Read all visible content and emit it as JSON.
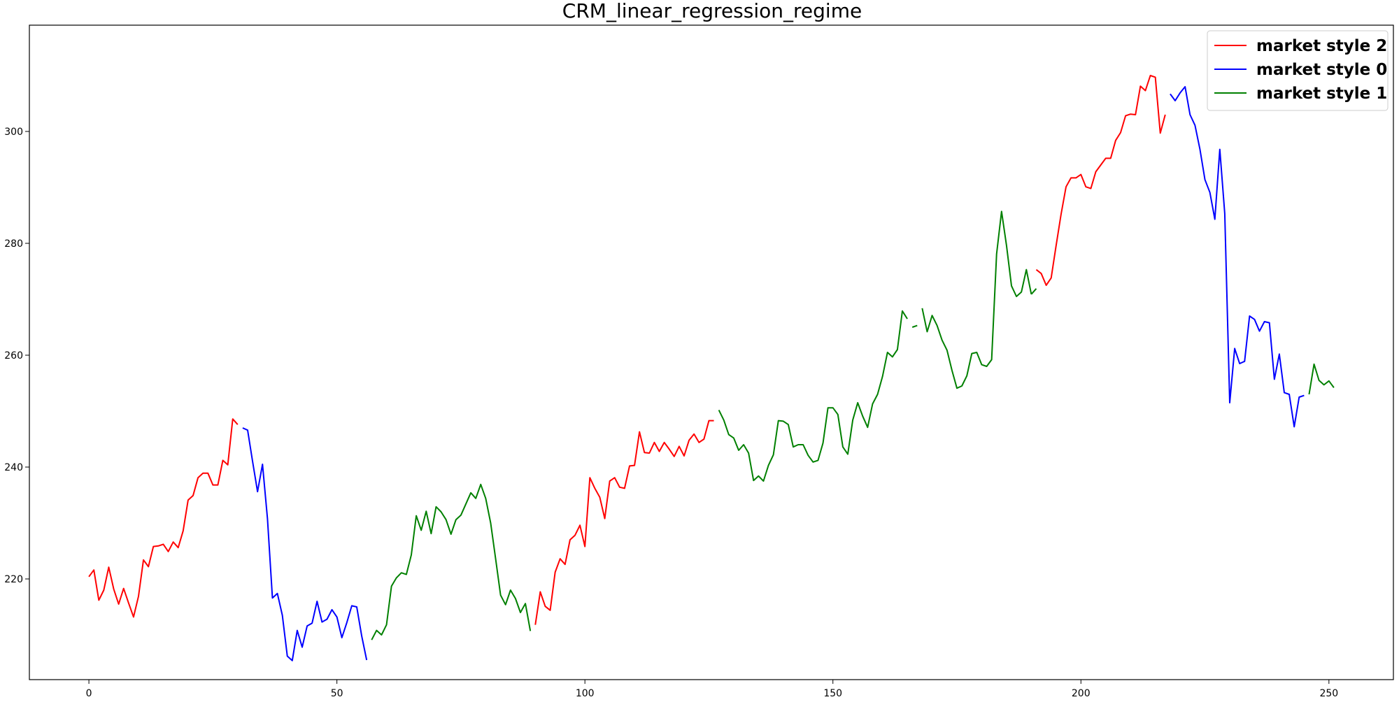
{
  "chart_data": {
    "type": "line",
    "title": "CRM_linear_regression_regime",
    "xlabel": "",
    "ylabel": "",
    "xlim": [
      -12,
      263
    ],
    "ylim": [
      202,
      319
    ],
    "x_ticks": [
      0,
      50,
      100,
      150,
      200,
      250
    ],
    "y_ticks": [
      220,
      240,
      260,
      280,
      300
    ],
    "grid": false,
    "legend_position": "top-right",
    "legend": [
      {
        "label": "market style 2",
        "color": "#ff0000"
      },
      {
        "label": "market style 0",
        "color": "#0000ff"
      },
      {
        "label": "market style 1",
        "color": "#008000"
      }
    ],
    "series": [
      {
        "name": "market style 2",
        "color": "#ff0000",
        "segments": [
          {
            "x": [
              0,
              1,
              2,
              3,
              4,
              5,
              6,
              7,
              8,
              9,
              10,
              11,
              12,
              13,
              14,
              15,
              16,
              17,
              18,
              19,
              20,
              21,
              22,
              23,
              24,
              25,
              26,
              27,
              28,
              29,
              30
            ],
            "y": [
              220.4,
              221.6,
              216.2,
              218.0,
              222.1,
              218.2,
              215.5,
              218.3,
              215.7,
              213.2,
              216.9,
              223.4,
              222.2,
              225.8,
              225.9,
              226.2,
              224.9,
              226.6,
              225.6,
              228.6,
              234.1,
              234.9,
              238.1,
              238.9,
              238.9,
              236.8,
              236.8,
              241.2,
              240.4,
              248.6,
              247.6
            ]
          },
          {
            "x": [
              90,
              91,
              92,
              93,
              94,
              95,
              96,
              97,
              98,
              99,
              100,
              101,
              102,
              103,
              104,
              105,
              106,
              107,
              108,
              109,
              110,
              111,
              112,
              113,
              114,
              115,
              116,
              117,
              118,
              119,
              120,
              121,
              122,
              123,
              124,
              125,
              126
            ],
            "y": [
              211.8,
              217.7,
              215.1,
              214.4,
              221.2,
              223.6,
              222.6,
              227.0,
              227.8,
              229.6,
              225.8,
              238.1,
              236.2,
              234.6,
              230.8,
              237.5,
              238.1,
              236.4,
              236.2,
              240.2,
              240.3,
              246.3,
              242.6,
              242.5,
              244.4,
              242.8,
              244.4,
              243.2,
              241.9,
              243.7,
              242.0,
              244.8,
              245.9,
              244.4,
              245.0,
              248.3,
              248.3
            ]
          },
          {
            "x": [
              191,
              192,
              193,
              194,
              195,
              196,
              197,
              198,
              199,
              200,
              201,
              202,
              203,
              204,
              205,
              206,
              207,
              208,
              209,
              210,
              211,
              212,
              213,
              214,
              215,
              216,
              217
            ],
            "y": [
              275.3,
              274.6,
              272.5,
              273.8,
              279.6,
              285.2,
              290.1,
              291.7,
              291.7,
              292.3,
              290.1,
              289.8,
              292.8,
              294.0,
              295.2,
              295.2,
              298.4,
              299.8,
              302.8,
              303.1,
              303.0,
              308.1,
              307.3,
              310.0,
              309.7,
              299.7,
              303.0
            ]
          }
        ]
      },
      {
        "name": "market style 0",
        "color": "#0000ff",
        "segments": [
          {
            "x": [
              31,
              32,
              33,
              34,
              35,
              36,
              37,
              38,
              39,
              40,
              41,
              42,
              43,
              44,
              45,
              46,
              47,
              48,
              49,
              50,
              51,
              52,
              53,
              54,
              55,
              56
            ],
            "y": [
              247.0,
              246.6,
              241.0,
              235.6,
              240.5,
              230.8,
              216.6,
              217.4,
              213.5,
              206.2,
              205.4,
              210.8,
              207.8,
              211.6,
              212.1,
              216.0,
              212.3,
              212.8,
              214.5,
              213.2,
              209.5,
              212.2,
              215.2,
              215.0,
              209.8,
              205.5
            ]
          },
          {
            "x": [
              218,
              219,
              220,
              221,
              222,
              223,
              224,
              225,
              226,
              227,
              228,
              229,
              230,
              231,
              232,
              233,
              234,
              235,
              236,
              237,
              238,
              239,
              240,
              241,
              242,
              243,
              244,
              245
            ],
            "y": [
              306.7,
              305.5,
              306.9,
              308.0,
              303.0,
              301.1,
              296.8,
              291.4,
              289.1,
              284.3,
              296.8,
              285.3,
              251.5,
              261.2,
              258.5,
              258.9,
              267.0,
              266.4,
              264.3,
              266.0,
              265.8,
              255.7,
              260.2,
              253.3,
              253.0,
              247.2,
              252.5,
              252.8
            ]
          }
        ]
      },
      {
        "name": "market style 1",
        "color": "#008000",
        "segments": [
          {
            "x": [
              57,
              58,
              59,
              60,
              61,
              62,
              63,
              64,
              65,
              66,
              67,
              68,
              69,
              70,
              71,
              72,
              73,
              74,
              75,
              76,
              77,
              78,
              79,
              80,
              81,
              82,
              83,
              84,
              85,
              86,
              87,
              88,
              89
            ],
            "y": [
              209.1,
              210.8,
              210.0,
              211.8,
              218.7,
              220.2,
              221.1,
              220.8,
              224.3,
              231.3,
              228.7,
              232.1,
              228.1,
              232.9,
              232.0,
              230.6,
              228.0,
              230.6,
              231.4,
              233.4,
              235.4,
              234.4,
              236.9,
              234.4,
              230.0,
              223.6,
              217.1,
              215.4,
              218.0,
              216.5,
              214.0,
              215.6,
              210.7
            ]
          },
          {
            "x": [
              127,
              128,
              129,
              130,
              131,
              132,
              133,
              134,
              135,
              136,
              137,
              138,
              139,
              140,
              141,
              142,
              143,
              144,
              145,
              146,
              147,
              148,
              149,
              150,
              151,
              152,
              153,
              154,
              155,
              156,
              157,
              158,
              159,
              160,
              161,
              162,
              163,
              164,
              165
            ],
            "y": [
              250.2,
              248.4,
              245.8,
              245.2,
              243.0,
              244.0,
              242.5,
              237.6,
              238.4,
              237.5,
              240.3,
              242.2,
              248.3,
              248.2,
              247.6,
              243.6,
              244.0,
              244.0,
              242.1,
              240.9,
              241.2,
              244.3,
              250.6,
              250.6,
              249.4,
              243.6,
              242.3,
              248.4,
              251.5,
              249.1,
              247.1,
              251.3,
              253.0,
              256.2,
              260.5,
              259.7,
              261.0,
              267.9,
              266.5
            ]
          },
          {
            "x": [
              166,
              167
            ],
            "y": [
              265.0,
              265.3
            ]
          },
          {
            "x": [
              168,
              169,
              170,
              171,
              172,
              173,
              174,
              175,
              176,
              177,
              178,
              179,
              180,
              181,
              182,
              183,
              184,
              185,
              186,
              187,
              188,
              189,
              190
            ],
            "y": [
              268.4,
              264.2,
              267.1,
              265.3,
              262.7,
              260.9,
              257.3,
              254.1,
              254.5,
              256.3,
              260.3,
              260.5,
              258.3,
              258.0,
              259.2,
              278.1,
              285.7,
              279.6,
              272.4,
              270.5,
              271.3,
              275.3,
              270.9
            ]
          },
          {
            "x": [
              190,
              191
            ],
            "y": [
              270.9,
              271.9
            ]
          },
          {
            "x": [
              246,
              247,
              248,
              249,
              250,
              251
            ],
            "y": [
              253.0,
              258.4,
              255.5,
              254.7,
              255.4,
              254.2
            ]
          }
        ]
      }
    ]
  }
}
